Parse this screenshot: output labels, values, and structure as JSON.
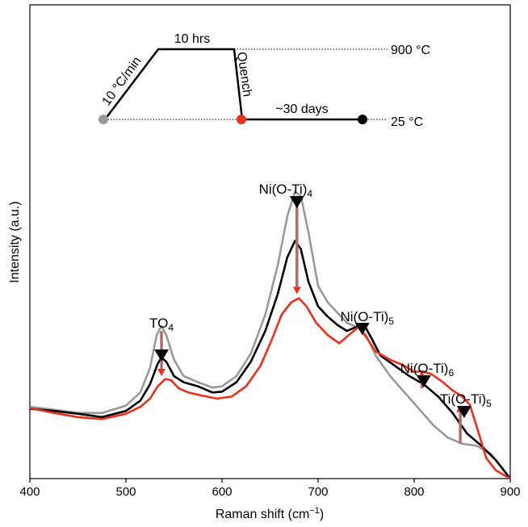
{
  "chart_data": {
    "type": "line",
    "xlabel": "Raman shift (cm",
    "xlabel_sup": "−1",
    "xlabel_end": ")",
    "ylabel": "Intensity (a.u.)",
    "xlim": [
      400,
      900
    ],
    "x_ticks": [
      "400",
      "500",
      "600",
      "700",
      "800",
      "900"
    ],
    "grid": false,
    "series": [
      {
        "color": "#999999",
        "points": [
          [
            400,
            0.175
          ],
          [
            425,
            0.168
          ],
          [
            450,
            0.16
          ],
          [
            475,
            0.16
          ],
          [
            500,
            0.178
          ],
          [
            515,
            0.21
          ],
          [
            525,
            0.27
          ],
          [
            532,
            0.35
          ],
          [
            537,
            0.372
          ],
          [
            542,
            0.35
          ],
          [
            550,
            0.29
          ],
          [
            560,
            0.25
          ],
          [
            575,
            0.235
          ],
          [
            590,
            0.222
          ],
          [
            600,
            0.225
          ],
          [
            615,
            0.25
          ],
          [
            630,
            0.305
          ],
          [
            645,
            0.4
          ],
          [
            658,
            0.52
          ],
          [
            668,
            0.64
          ],
          [
            676,
            0.7
          ],
          [
            682,
            0.69
          ],
          [
            690,
            0.6
          ],
          [
            700,
            0.47
          ],
          [
            710,
            0.43
          ],
          [
            720,
            0.405
          ],
          [
            730,
            0.38
          ],
          [
            740,
            0.37
          ],
          [
            750,
            0.35
          ],
          [
            760,
            0.3
          ],
          [
            775,
            0.25
          ],
          [
            790,
            0.21
          ],
          [
            805,
            0.17
          ],
          [
            820,
            0.13
          ],
          [
            835,
            0.1
          ],
          [
            850,
            0.085
          ],
          [
            865,
            0.08
          ],
          [
            880,
            0.06
          ],
          [
            890,
            0.03
          ],
          [
            900,
            0.0
          ]
        ]
      },
      {
        "color": "#000000",
        "points": [
          [
            400,
            0.17
          ],
          [
            425,
            0.165
          ],
          [
            450,
            0.158
          ],
          [
            475,
            0.15
          ],
          [
            500,
            0.165
          ],
          [
            515,
            0.19
          ],
          [
            525,
            0.23
          ],
          [
            533,
            0.28
          ],
          [
            537,
            0.295
          ],
          [
            542,
            0.285
          ],
          [
            550,
            0.25
          ],
          [
            560,
            0.235
          ],
          [
            575,
            0.225
          ],
          [
            590,
            0.21
          ],
          [
            600,
            0.212
          ],
          [
            615,
            0.235
          ],
          [
            630,
            0.285
          ],
          [
            645,
            0.36
          ],
          [
            658,
            0.45
          ],
          [
            668,
            0.54
          ],
          [
            676,
            0.58
          ],
          [
            682,
            0.56
          ],
          [
            690,
            0.48
          ],
          [
            700,
            0.42
          ],
          [
            710,
            0.395
          ],
          [
            720,
            0.375
          ],
          [
            730,
            0.36
          ],
          [
            740,
            0.37
          ],
          [
            748,
            0.375
          ],
          [
            755,
            0.345
          ],
          [
            765,
            0.3
          ],
          [
            780,
            0.275
          ],
          [
            795,
            0.25
          ],
          [
            810,
            0.23
          ],
          [
            825,
            0.2
          ],
          [
            840,
            0.16
          ],
          [
            855,
            0.11
          ],
          [
            870,
            0.08
          ],
          [
            885,
            0.045
          ],
          [
            900,
            0.0
          ]
        ]
      },
      {
        "color": "#e8301c",
        "points": [
          [
            400,
            0.172
          ],
          [
            425,
            0.16
          ],
          [
            450,
            0.15
          ],
          [
            475,
            0.145
          ],
          [
            500,
            0.158
          ],
          [
            515,
            0.175
          ],
          [
            525,
            0.195
          ],
          [
            533,
            0.225
          ],
          [
            541,
            0.243
          ],
          [
            547,
            0.24
          ],
          [
            555,
            0.22
          ],
          [
            565,
            0.21
          ],
          [
            580,
            0.202
          ],
          [
            595,
            0.195
          ],
          [
            610,
            0.2
          ],
          [
            625,
            0.225
          ],
          [
            640,
            0.275
          ],
          [
            652,
            0.34
          ],
          [
            662,
            0.4
          ],
          [
            672,
            0.43
          ],
          [
            680,
            0.44
          ],
          [
            688,
            0.42
          ],
          [
            698,
            0.38
          ],
          [
            710,
            0.35
          ],
          [
            722,
            0.33
          ],
          [
            732,
            0.35
          ],
          [
            742,
            0.37
          ],
          [
            750,
            0.345
          ],
          [
            760,
            0.31
          ],
          [
            775,
            0.29
          ],
          [
            790,
            0.275
          ],
          [
            800,
            0.26
          ],
          [
            808,
            0.262
          ],
          [
            818,
            0.255
          ],
          [
            830,
            0.235
          ],
          [
            840,
            0.215
          ],
          [
            850,
            0.2
          ],
          [
            858,
            0.18
          ],
          [
            866,
            0.12
          ],
          [
            875,
            0.05
          ],
          [
            885,
            0.02
          ],
          [
            900,
            0.0
          ]
        ]
      }
    ],
    "peaks": [
      {
        "base": "TO",
        "sub": "4",
        "x": 537
      },
      {
        "base": "Ni(O-Ti)",
        "sub": "4",
        "x": 678
      },
      {
        "base": "Ni(O-Ti)",
        "sub": "5",
        "x": 746
      },
      {
        "base": "Ni(O-Ti)",
        "sub": "6",
        "x": 810
      },
      {
        "base": "Ti(O-Ti)",
        "sub": "5",
        "x": 852
      }
    ],
    "change_arrows": [
      {
        "x": 537,
        "from": 0.36,
        "to": 0.25,
        "color": "#b06b6b",
        "head": "#e8301c"
      },
      {
        "x": 678,
        "from": 0.69,
        "to": 0.45,
        "color": "#b06b6b",
        "head": "#e8301c"
      },
      {
        "x": 808,
        "from": 0.22,
        "to": 0.262,
        "color": "#b06b6b",
        "head": "#e8301c"
      },
      {
        "x": 848,
        "from": 0.085,
        "to": 0.18,
        "color": "#b06b6b",
        "head": "#e8301c"
      }
    ],
    "inset": {
      "rate": "10 °C/min",
      "hold": "10 hrs",
      "quench": "Quench",
      "aging": "~30 days",
      "temp_high": "900 °C",
      "temp_low": "25 °C",
      "point_colors": [
        "#999999",
        "#e8301c",
        "#000000"
      ]
    }
  }
}
